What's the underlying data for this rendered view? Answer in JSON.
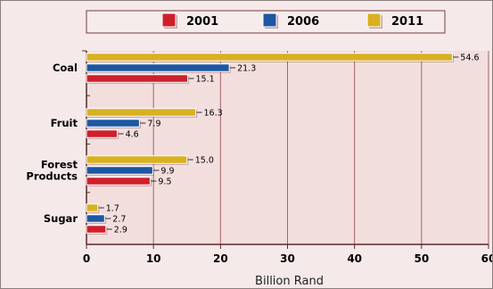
{
  "chart_data": {
    "type": "bar",
    "orientation": "horizontal",
    "categories": [
      "Coal",
      "Fruit",
      "Forest Products",
      "Sugar"
    ],
    "category_lines": [
      [
        "Coal"
      ],
      [
        "Fruit"
      ],
      [
        "Forest",
        "Products"
      ],
      [
        "Sugar"
      ]
    ],
    "series": [
      {
        "name": "2011",
        "values": [
          54.6,
          16.3,
          15.0,
          1.7
        ],
        "labels": [
          "54.6",
          "16.3",
          "15.0",
          "1.7"
        ]
      },
      {
        "name": "2006",
        "values": [
          21.3,
          7.9,
          9.9,
          2.7
        ],
        "labels": [
          "21.3",
          "7.9",
          "9.9",
          "2.7"
        ]
      },
      {
        "name": "2001",
        "values": [
          15.1,
          4.6,
          9.5,
          2.9
        ],
        "labels": [
          "15.1",
          "4.6",
          "9.5",
          "2.9"
        ]
      }
    ],
    "legend": {
      "placement": "top",
      "order": [
        "2001",
        "2006",
        "2011"
      ]
    },
    "xlabel": "Billion Rand",
    "xlim": [
      0,
      60
    ],
    "xticks": [
      "0",
      "10",
      "20",
      "30",
      "40",
      "50",
      "60"
    ],
    "grid": true,
    "colors": {
      "2001": "#cf1f2b",
      "2006": "#1d57a3",
      "2011": "#d9b01f",
      "plot_background": "#f3dede",
      "grid": "#a56464",
      "axis": "#5a2a2a"
    }
  }
}
